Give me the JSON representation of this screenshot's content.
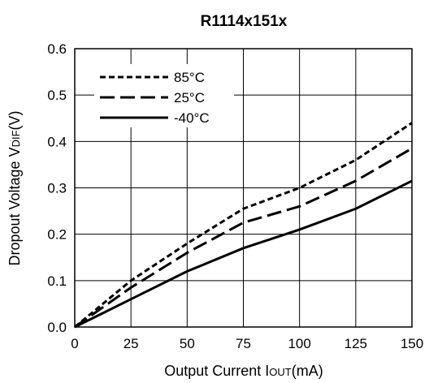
{
  "chart_data": {
    "type": "line",
    "title": "R1114x151x",
    "xlabel": {
      "main": "Output Current I",
      "sub": "OUT",
      "unit": "(mA)"
    },
    "ylabel": {
      "main": "Dropout Voltage V",
      "sub": "DIF",
      "unit": "(V)"
    },
    "xlim": [
      0,
      150
    ],
    "ylim": [
      0,
      0.6
    ],
    "x_ticks": [
      0,
      25,
      50,
      75,
      100,
      125,
      150
    ],
    "x_tick_labels": [
      "0",
      "25",
      "50",
      "75",
      "100",
      "125",
      "150"
    ],
    "y_ticks": [
      0,
      0.1,
      0.2,
      0.3,
      0.4,
      0.5,
      0.6
    ],
    "y_tick_labels": [
      "0.0",
      "0.1",
      "0.2",
      "0.3",
      "0.4",
      "0.5",
      "0.6"
    ],
    "grid": true,
    "legend_position": "top-left",
    "x": [
      0,
      25,
      50,
      75,
      100,
      125,
      150
    ],
    "series": [
      {
        "name": "85°C",
        "style": "short-dash",
        "values": [
          0,
          0.1,
          0.18,
          0.255,
          0.3,
          0.36,
          0.44
        ]
      },
      {
        "name": "25°C",
        "style": "long-dash",
        "values": [
          0,
          0.085,
          0.16,
          0.225,
          0.26,
          0.315,
          0.385
        ]
      },
      {
        "name": "-40°C",
        "style": "solid",
        "values": [
          0,
          0.06,
          0.12,
          0.17,
          0.21,
          0.255,
          0.315
        ]
      }
    ]
  }
}
